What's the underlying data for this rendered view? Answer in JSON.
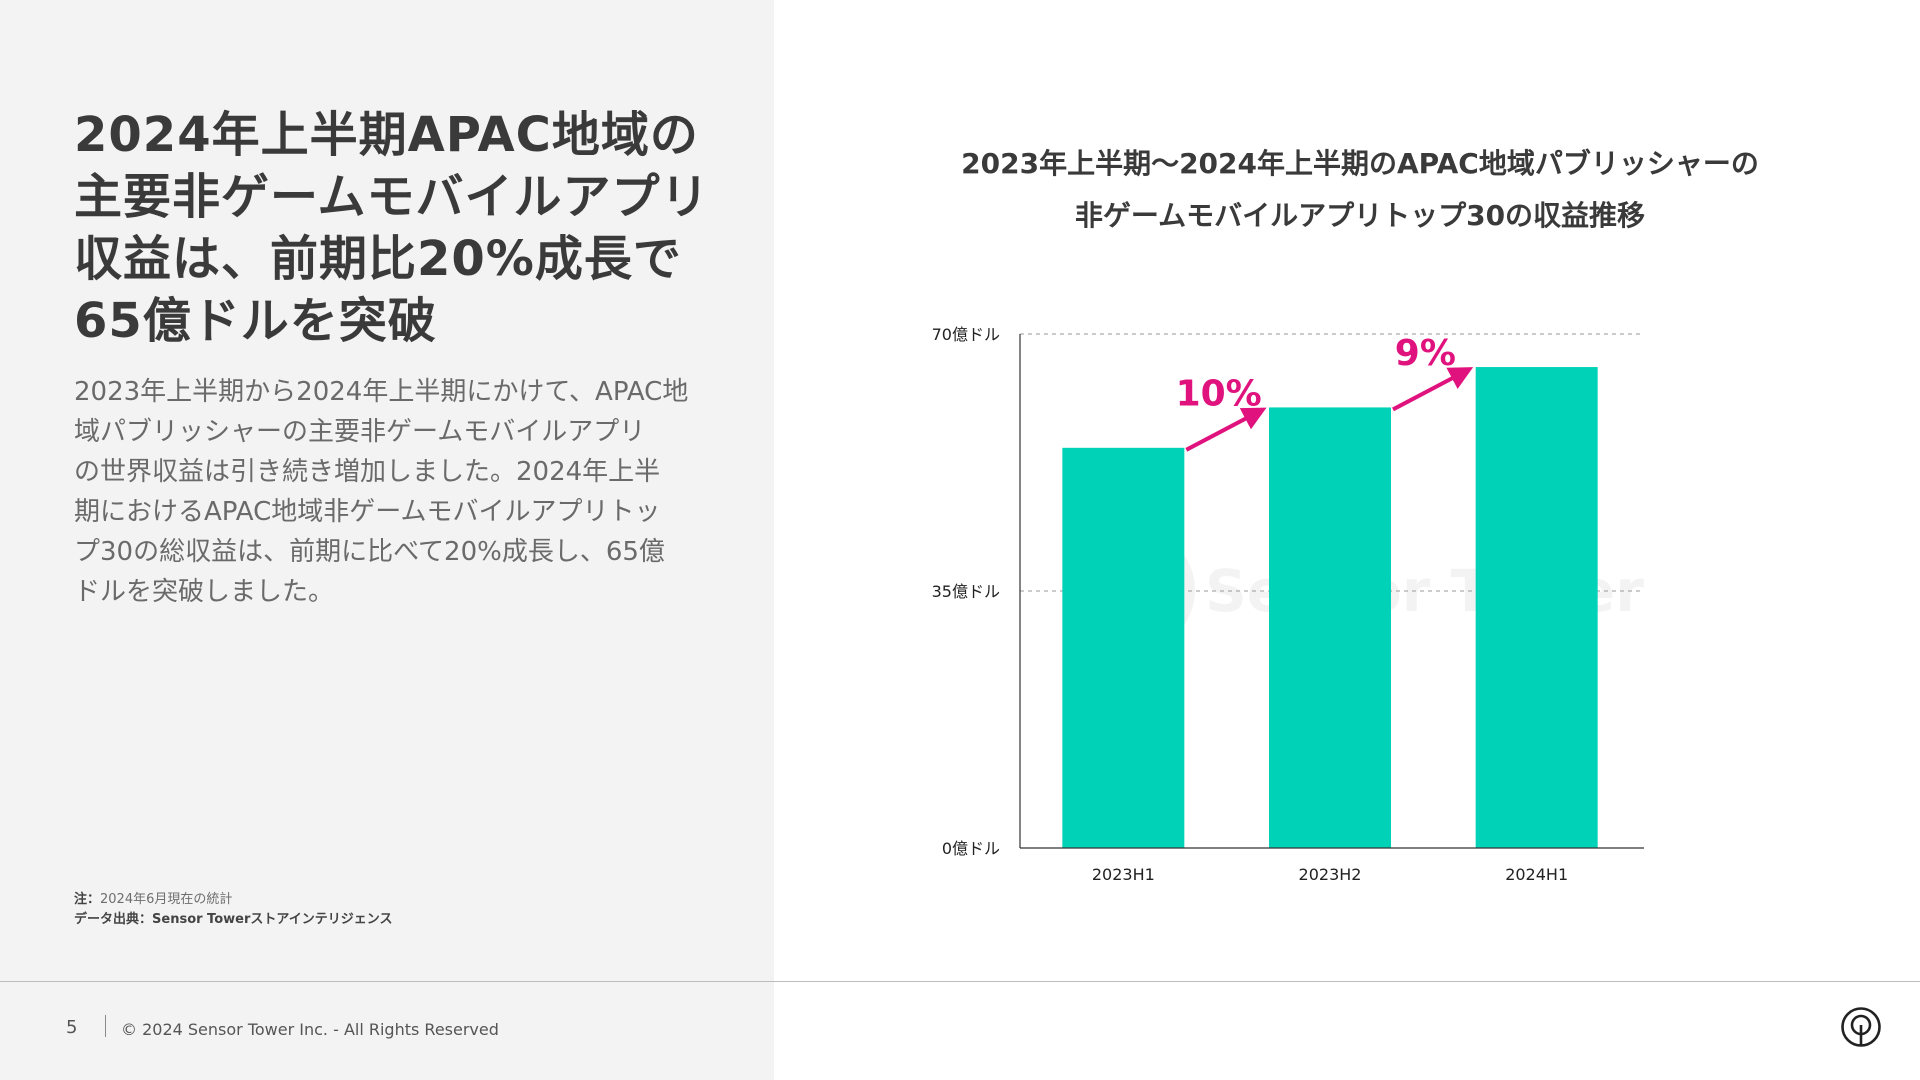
{
  "headline": {
    "line1": "2024年上半期APAC地域の",
    "line2": "主要非ゲームモバイルアプリ",
    "line3": "収益は、前期比20%成長で",
    "line4": "65億ドルを突破"
  },
  "body": {
    "line1": "2023年上半期から2024年上半期にかけて、APAC地",
    "line2": "域パブリッシャーの主要非ゲームモバイルアプリ",
    "line3": "の世界収益は引き続き増加しました。2024年上半",
    "line4": "期におけるAPAC地域非ゲームモバイルアプリトッ",
    "line5": "プ30の総収益は、前期に比べて20%成長し、65億",
    "line6": "ドルを突破しました。"
  },
  "notes": {
    "note_label": "注：",
    "note_text": "2024年6月現在の統計",
    "source_label": "データ出典：",
    "source_text": "Sensor Towerストアインテリジェンス"
  },
  "footer": {
    "page_number": "5",
    "copyright": "© 2024 Sensor Tower Inc. - All Rights Reserved",
    "logo_icon": "sensor-tower-logo-icon"
  },
  "colors": {
    "bar": "#00d2b8",
    "growth": "#e0137e",
    "panel": "#f3f3f3",
    "text_dark": "#3a3a3a"
  },
  "chart_data": {
    "type": "bar",
    "title_line1": "2023年上半期〜2024年上半期のAPAC地域パブリッシャーの",
    "title_line2": "非ゲームモバイルアプリトップ30の収益推移",
    "categories": [
      "2023H1",
      "2023H2",
      "2024H1"
    ],
    "values": [
      54.5,
      60,
      65.5
    ],
    "value_unit": "億ドル",
    "ylim": [
      0,
      70
    ],
    "yticks": [
      {
        "value": 0,
        "label": "0億ドル"
      },
      {
        "value": 35,
        "label": "35億ドル"
      },
      {
        "value": 70,
        "label": "70億ドル"
      }
    ],
    "grid": true,
    "growth_annotations": [
      {
        "from": "2023H1",
        "to": "2023H2",
        "label": "10%"
      },
      {
        "from": "2023H2",
        "to": "2024H1",
        "label": "9%"
      }
    ],
    "watermark": "Sensor Tower"
  }
}
